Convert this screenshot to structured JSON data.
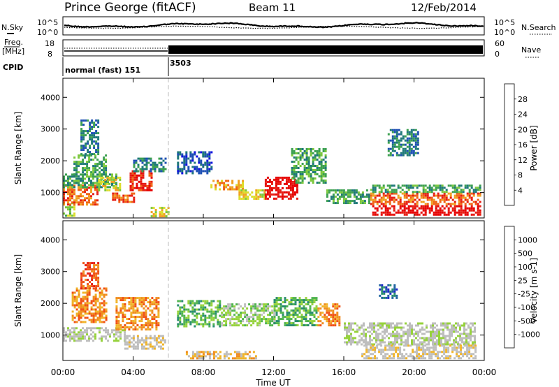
{
  "header": {
    "station": "Prince George (fitACF)",
    "beam": "Beam 11",
    "date": "12/Feb/2014"
  },
  "left_labels": {
    "nsky": "N.Sky",
    "freq_line1": "Freq.",
    "freq_line2": "[MHz]",
    "cpid": "CPID"
  },
  "right_labels": {
    "nsearch": "N.Search",
    "nave": "Nave"
  },
  "noise_axis": {
    "left_ticks": [
      "10^5",
      "10^0"
    ],
    "right_ticks": [
      "10^5",
      "10^0"
    ]
  },
  "freq_axis": {
    "left_ticks": [
      "18",
      "8"
    ],
    "right_ticks": [
      "60",
      "0"
    ]
  },
  "cpid_segments": [
    {
      "label": "normal (fast) 151",
      "start_hour": 0,
      "end_hour": 6
    },
    {
      "label": "3503",
      "start_hour": 6,
      "end_hour": 24
    }
  ],
  "chart_data": [
    {
      "type": "heatmap",
      "name": "power",
      "ylabel": "Slant Range [km]",
      "xlabel": "",
      "xlim_hours": [
        0,
        24
      ],
      "ylim": [
        200,
        4600
      ],
      "yticks": [
        "1000",
        "2000",
        "3000",
        "4000"
      ],
      "colorbar": {
        "label": "Power [dB]",
        "ticks": [
          "4",
          "8",
          "12",
          "16",
          "20",
          "24",
          "28"
        ],
        "colors": [
          "#1010e0",
          "#1e50b4",
          "#1e7878",
          "#3ca050",
          "#7cc83c",
          "#dcdc28",
          "#f0a020",
          "#f06414",
          "#e61e14",
          "#e60000"
        ]
      },
      "regions": [
        {
          "t": [
            0.0,
            0.6
          ],
          "r": [
            250,
            700
          ],
          "c": 4
        },
        {
          "t": [
            0.0,
            2.0
          ],
          "r": [
            650,
            1250
          ],
          "c": 7
        },
        {
          "t": [
            0.0,
            3.0
          ],
          "r": [
            1200,
            1600
          ],
          "c": 3
        },
        {
          "t": [
            0.6,
            2.4
          ],
          "r": [
            1500,
            2200
          ],
          "c": 3
        },
        {
          "t": [
            1.0,
            2.0
          ],
          "r": [
            2200,
            3300
          ],
          "c": 2
        },
        {
          "t": [
            2.0,
            3.2
          ],
          "r": [
            1100,
            1500
          ],
          "c": 5
        },
        {
          "t": [
            2.8,
            4.0
          ],
          "r": [
            700,
            1000
          ],
          "c": 7
        },
        {
          "t": [
            3.8,
            5.0
          ],
          "r": [
            1100,
            1700
          ],
          "c": 8
        },
        {
          "t": [
            4.0,
            5.8
          ],
          "r": [
            1700,
            2100
          ],
          "c": 2
        },
        {
          "t": [
            5.0,
            6.0
          ],
          "r": [
            250,
            550
          ],
          "c": 5
        },
        {
          "t": [
            6.5,
            8.5
          ],
          "r": [
            1600,
            2300
          ],
          "c": 1
        },
        {
          "t": [
            8.4,
            10.2
          ],
          "r": [
            1100,
            1400
          ],
          "c": 6
        },
        {
          "t": [
            10.0,
            11.5
          ],
          "r": [
            800,
            1100
          ],
          "c": 5
        },
        {
          "t": [
            11.5,
            13.4
          ],
          "r": [
            800,
            1500
          ],
          "c": 9
        },
        {
          "t": [
            13.0,
            15.0
          ],
          "r": [
            1300,
            2400
          ],
          "c": 3
        },
        {
          "t": [
            15.0,
            17.5
          ],
          "r": [
            700,
            1100
          ],
          "c": 3
        },
        {
          "t": [
            17.5,
            23.8
          ],
          "r": [
            300,
            600
          ],
          "c": 9
        },
        {
          "t": [
            17.5,
            23.8
          ],
          "r": [
            650,
            1000
          ],
          "c": 7
        },
        {
          "t": [
            17.5,
            23.8
          ],
          "r": [
            1000,
            1250
          ],
          "c": 3
        },
        {
          "t": [
            18.5,
            20.2
          ],
          "r": [
            2200,
            3000
          ],
          "c": 2
        }
      ]
    },
    {
      "type": "heatmap",
      "name": "velocity",
      "ylabel": "Slant Range [km]",
      "xlabel": "Time UT",
      "xlim_hours": [
        0,
        24
      ],
      "ylim": [
        200,
        4600
      ],
      "xticks": [
        "00:00",
        "04:00",
        "08:00",
        "12:00",
        "16:00",
        "20:00",
        "00:00"
      ],
      "yticks": [
        "1000",
        "2000",
        "3000",
        "4000"
      ],
      "colorbar": {
        "label": "Velocity [m s-1]",
        "ticks": [
          "1000",
          "500",
          "100",
          "25",
          "-25",
          "-100",
          "-500",
          "-1000"
        ],
        "colors": [
          "#1e28c8",
          "#1e64a0",
          "#288c6e",
          "#50b450",
          "#96d23c",
          "#bebebe",
          "#bebebe",
          "#f0b428",
          "#f08c1e",
          "#f05014",
          "#e61e14"
        ]
      },
      "regions": [
        {
          "t": [
            0.0,
            3.5
          ],
          "r": [
            800,
            1250
          ],
          "c": 5
        },
        {
          "t": [
            0.5,
            2.5
          ],
          "r": [
            1400,
            2500
          ],
          "c": 8
        },
        {
          "t": [
            1.0,
            2.0
          ],
          "r": [
            2500,
            3300
          ],
          "c": 9
        },
        {
          "t": [
            3.0,
            5.5
          ],
          "r": [
            1200,
            2200
          ],
          "c": 8
        },
        {
          "t": [
            3.5,
            5.8
          ],
          "r": [
            600,
            1000
          ],
          "c": 6
        },
        {
          "t": [
            6.5,
            9.0
          ],
          "r": [
            1300,
            2100
          ],
          "c": 3
        },
        {
          "t": [
            7.0,
            11.0
          ],
          "r": [
            300,
            500
          ],
          "c": 7
        },
        {
          "t": [
            9.0,
            12.0
          ],
          "r": [
            1300,
            2000
          ],
          "c": 4
        },
        {
          "t": [
            12.0,
            14.5
          ],
          "r": [
            1300,
            2200
          ],
          "c": 3
        },
        {
          "t": [
            14.5,
            15.8
          ],
          "r": [
            1300,
            2000
          ],
          "c": 8
        },
        {
          "t": [
            16.0,
            23.5
          ],
          "r": [
            700,
            1400
          ],
          "c": 5
        },
        {
          "t": [
            17.0,
            23.5
          ],
          "r": [
            250,
            700
          ],
          "c": 6
        },
        {
          "t": [
            18.0,
            19.0
          ],
          "r": [
            2200,
            2600
          ],
          "c": 1
        }
      ]
    }
  ]
}
